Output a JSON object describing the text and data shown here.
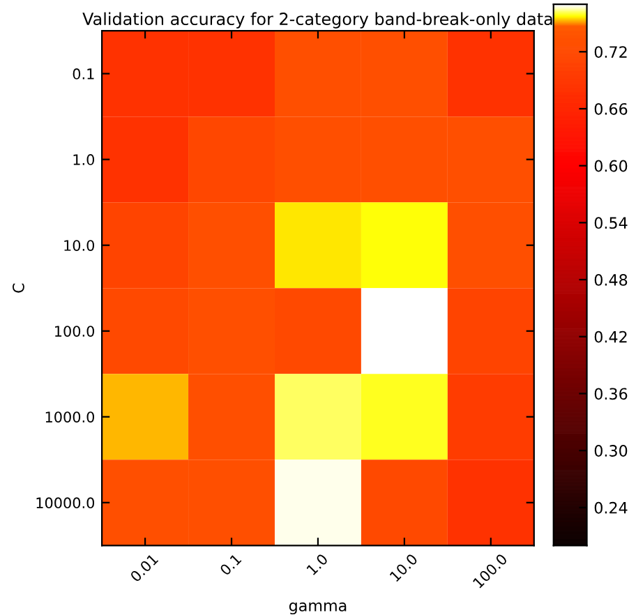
{
  "chart_data": {
    "type": "heatmap",
    "title": "Validation accuracy for 2-category band-break-only data",
    "xlabel": "gamma",
    "ylabel": "C",
    "categories": [
      "0.01",
      "0.1",
      "1.0",
      "10.0",
      "100.0"
    ],
    "y_categories": [
      "0.1",
      "1.0",
      "10.0",
      "100.0",
      "1000.0",
      "10000.0"
    ],
    "cells": [
      [
        0.68,
        0.68,
        0.73,
        0.73,
        0.68
      ],
      [
        0.68,
        0.715,
        0.73,
        0.73,
        0.73
      ],
      [
        0.71,
        0.73,
        0.757,
        0.759,
        0.73
      ],
      [
        0.72,
        0.73,
        0.72,
        0.77,
        0.71
      ],
      [
        0.754,
        0.73,
        0.763,
        0.76,
        0.7
      ],
      [
        0.73,
        0.73,
        0.769,
        0.72,
        0.68
      ]
    ],
    "clim": [
      0.2,
      0.77
    ],
    "cticks": [
      0.24,
      {
        "value": 0.3,
        "label": "0.30"
      },
      0.36,
      0.42,
      0.48,
      0.54,
      {
        "value": 0.6,
        "label": "0.60"
      },
      0.66,
      0.72
    ]
  }
}
